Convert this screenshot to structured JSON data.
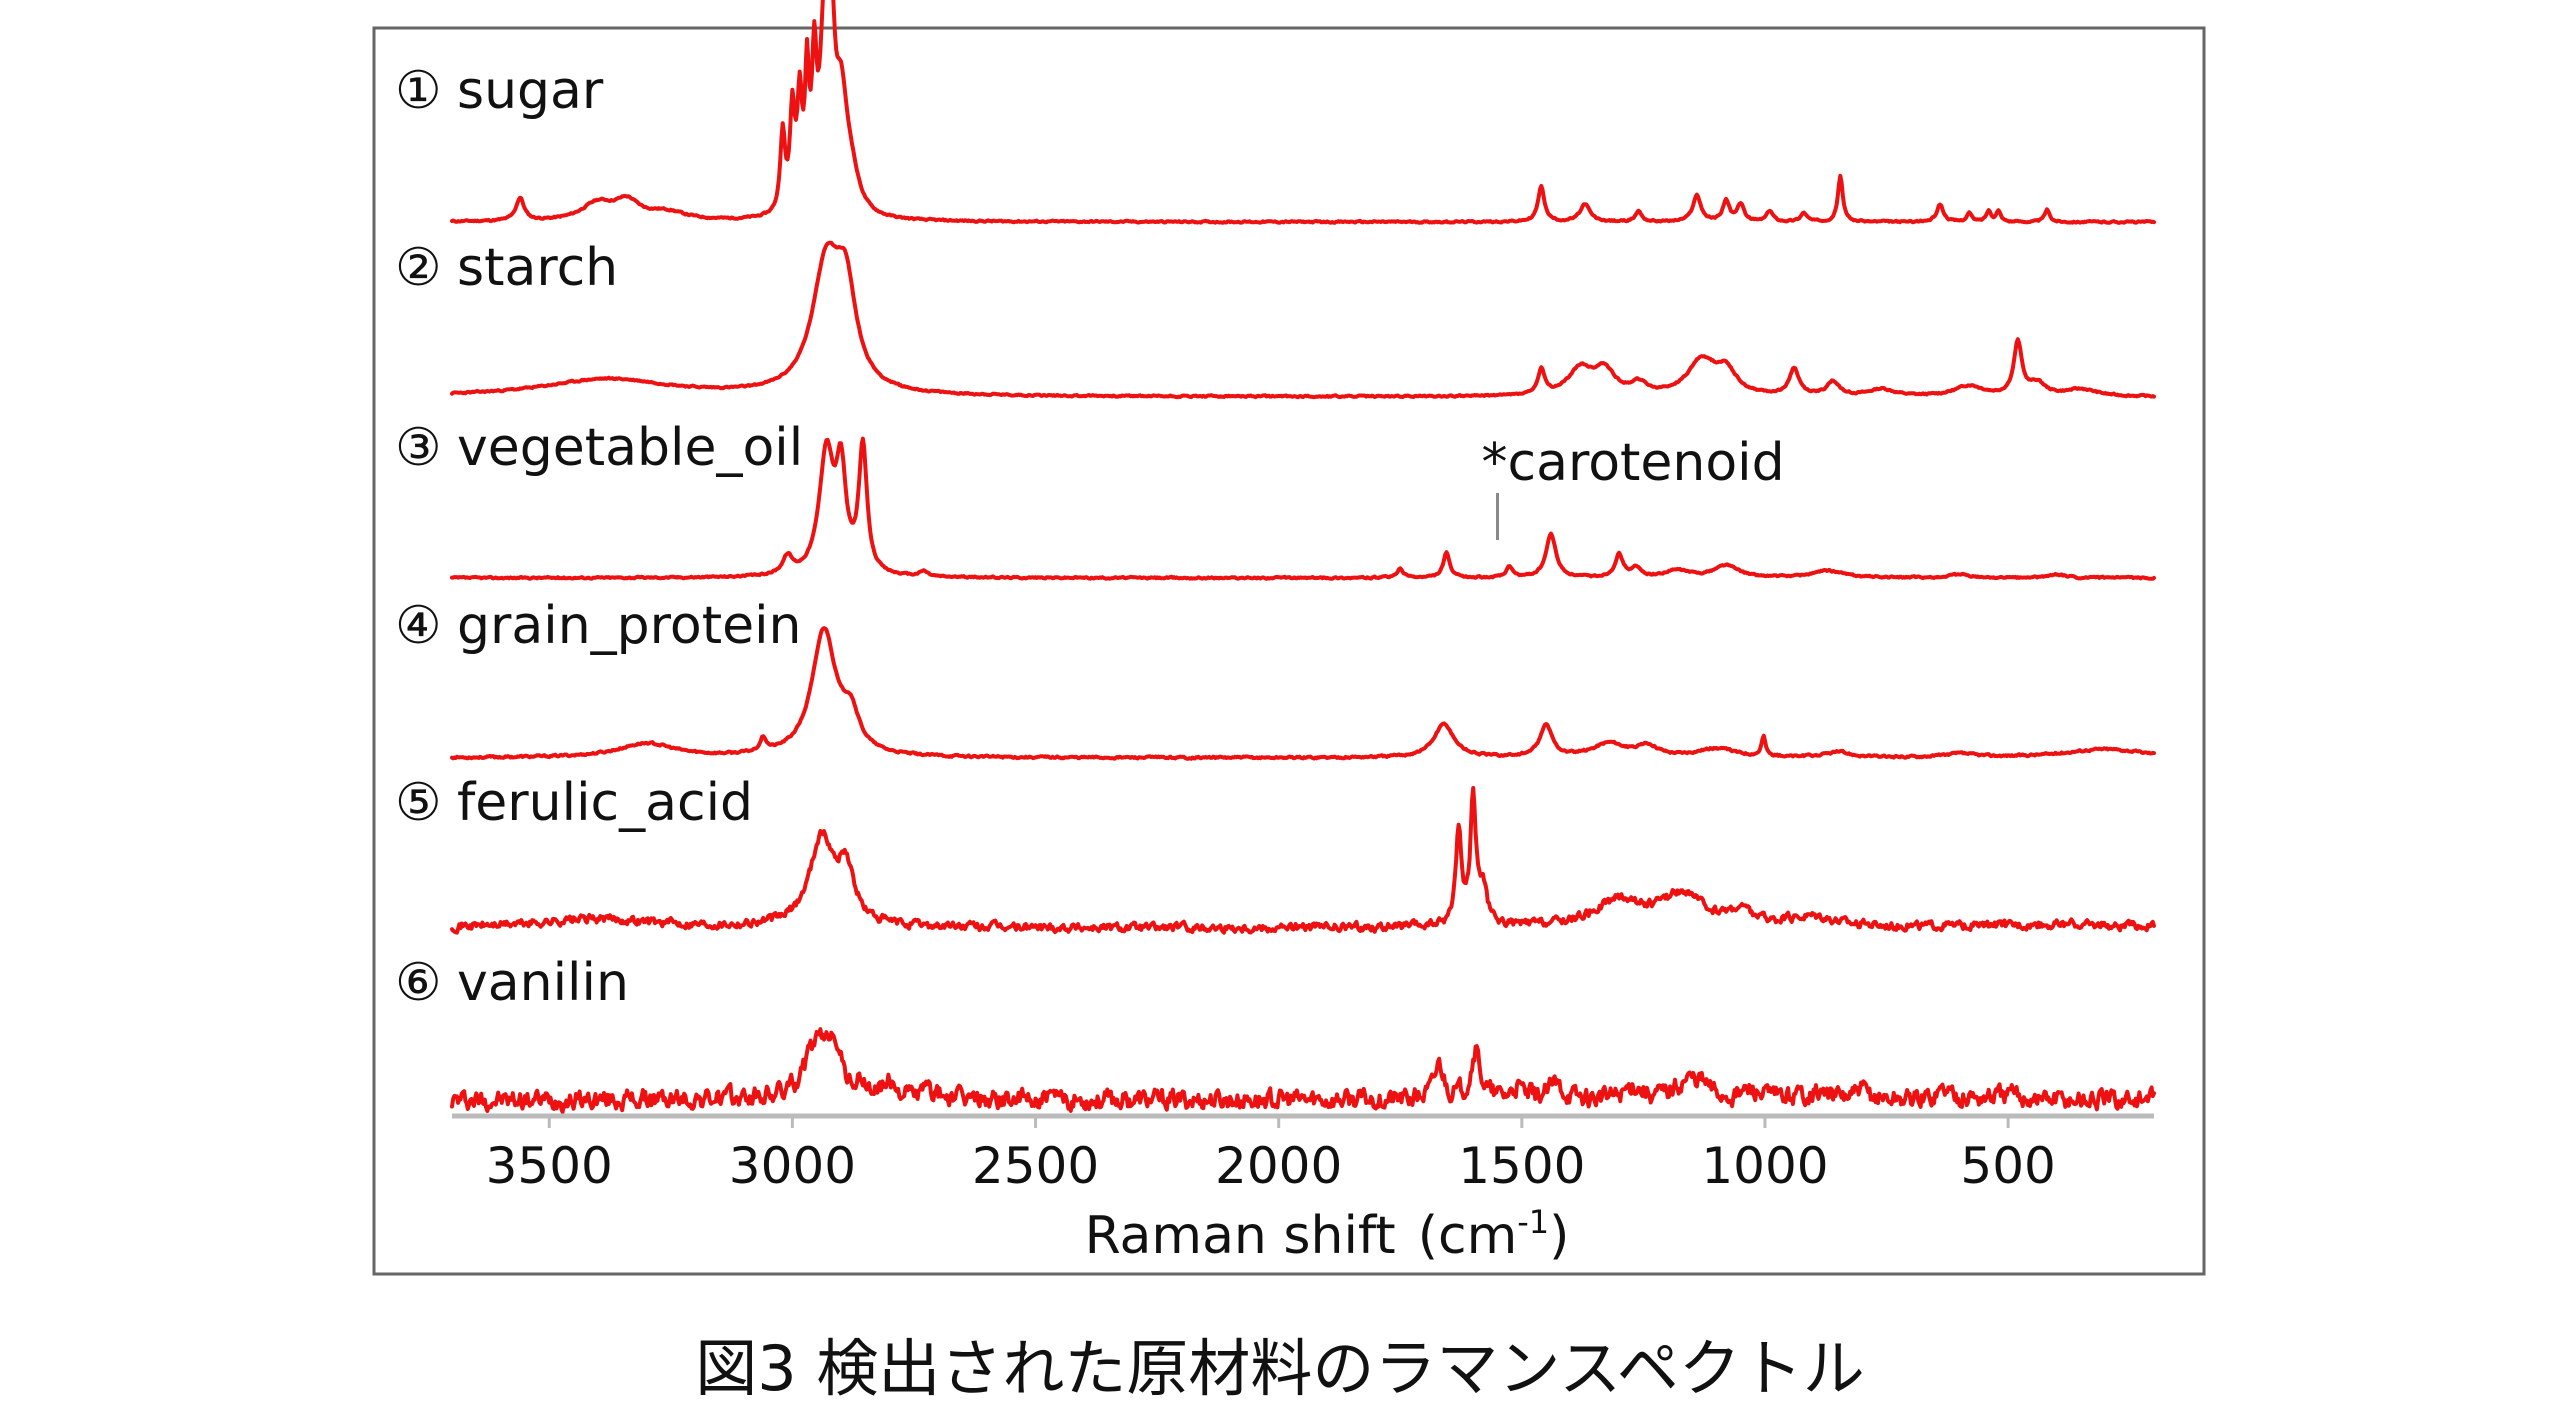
{
  "chart_data": {
    "type": "line",
    "title": "",
    "xlabel": "Raman shift",
    "xlabel_unit": "(cm",
    "xlabel_unit_sup": "-1",
    "xlabel_unit_close": ")",
    "ylabel": "",
    "x_reversed": true,
    "xlim": [
      3700,
      200
    ],
    "xticks": [
      3500,
      3000,
      2500,
      2000,
      1500,
      1000,
      500
    ],
    "tick_labels": [
      "3500",
      "3000",
      "2500",
      "2000",
      "1500",
      "1000",
      "500"
    ],
    "grid": false,
    "line_color": "#ee1111",
    "annotation": {
      "marker": "*",
      "text": "carotenoid",
      "x": 1550
    },
    "series": [
      {
        "index": "①",
        "name": "sugar",
        "seed": 11,
        "noise": 0.004,
        "peaks": [
          [
            3560,
            10,
            0.13
          ],
          [
            3400,
            40,
            0.1
          ],
          [
            3340,
            30,
            0.1
          ],
          [
            3260,
            50,
            0.05
          ],
          [
            3020,
            6,
            0.45
          ],
          [
            3000,
            6,
            0.55
          ],
          [
            2985,
            6,
            0.6
          ],
          [
            2970,
            5,
            0.7
          ],
          [
            2955,
            6,
            0.75
          ],
          [
            2935,
            10,
            0.95
          ],
          [
            2920,
            8,
            0.9
          ],
          [
            2900,
            15,
            0.6
          ],
          [
            2880,
            20,
            0.2
          ],
          [
            1460,
            8,
            0.2
          ],
          [
            1370,
            12,
            0.1
          ],
          [
            1260,
            8,
            0.06
          ],
          [
            1140,
            10,
            0.15
          ],
          [
            1080,
            8,
            0.12
          ],
          [
            1050,
            8,
            0.1
          ],
          [
            990,
            8,
            0.06
          ],
          [
            920,
            8,
            0.05
          ],
          [
            845,
            6,
            0.26
          ],
          [
            640,
            8,
            0.1
          ],
          [
            580,
            6,
            0.05
          ],
          [
            540,
            6,
            0.06
          ],
          [
            520,
            6,
            0.06
          ],
          [
            420,
            6,
            0.07
          ]
        ]
      },
      {
        "index": "②",
        "name": "starch",
        "seed": 23,
        "noise": 0.004,
        "peaks": [
          [
            3380,
            160,
            0.1
          ],
          [
            2930,
            35,
            0.72
          ],
          [
            2890,
            25,
            0.5
          ],
          [
            1460,
            8,
            0.14
          ],
          [
            1380,
            30,
            0.15
          ],
          [
            1330,
            25,
            0.14
          ],
          [
            1260,
            20,
            0.06
          ],
          [
            1130,
            35,
            0.2
          ],
          [
            1080,
            25,
            0.13
          ],
          [
            940,
            12,
            0.15
          ],
          [
            860,
            15,
            0.08
          ],
          [
            760,
            30,
            0.04
          ],
          [
            580,
            35,
            0.06
          ],
          [
            480,
            10,
            0.3
          ],
          [
            440,
            20,
            0.07
          ],
          [
            350,
            40,
            0.04
          ]
        ]
      },
      {
        "index": "③",
        "name": "vegetable_oil",
        "seed": 37,
        "noise": 0.004,
        "peaks": [
          [
            3010,
            12,
            0.1
          ],
          [
            2930,
            18,
            0.7
          ],
          [
            2900,
            12,
            0.55
          ],
          [
            2855,
            10,
            0.72
          ],
          [
            2730,
            10,
            0.03
          ],
          [
            1750,
            8,
            0.05
          ],
          [
            1655,
            8,
            0.14
          ],
          [
            1525,
            8,
            0.06
          ],
          [
            1440,
            12,
            0.25
          ],
          [
            1300,
            10,
            0.13
          ],
          [
            1265,
            12,
            0.05
          ],
          [
            1180,
            30,
            0.04
          ],
          [
            1080,
            30,
            0.07
          ],
          [
            870,
            40,
            0.04
          ],
          [
            600,
            20,
            0.02
          ],
          [
            400,
            20,
            0.02
          ]
        ]
      },
      {
        "index": "④",
        "name": "grain_protein",
        "seed": 53,
        "noise": 0.005,
        "peaks": [
          [
            3300,
            70,
            0.08
          ],
          [
            3060,
            8,
            0.08
          ],
          [
            2935,
            30,
            0.72
          ],
          [
            2880,
            20,
            0.2
          ],
          [
            1660,
            25,
            0.19
          ],
          [
            1450,
            15,
            0.18
          ],
          [
            1320,
            40,
            0.08
          ],
          [
            1240,
            25,
            0.06
          ],
          [
            1100,
            50,
            0.05
          ],
          [
            1003,
            5,
            0.11
          ],
          [
            850,
            30,
            0.03
          ],
          [
            600,
            40,
            0.02
          ],
          [
            300,
            100,
            0.05
          ]
        ]
      },
      {
        "index": "⑤",
        "name": "ferulic_acid",
        "seed": 71,
        "noise": 0.02,
        "peaks": [
          [
            3400,
            150,
            0.05
          ],
          [
            2940,
            30,
            0.5
          ],
          [
            2890,
            20,
            0.3
          ],
          [
            1630,
            7,
            0.55
          ],
          [
            1600,
            7,
            0.72
          ],
          [
            1580,
            10,
            0.2
          ],
          [
            1300,
            60,
            0.15
          ],
          [
            1170,
            50,
            0.18
          ],
          [
            1050,
            30,
            0.08
          ],
          [
            900,
            60,
            0.06
          ],
          [
            400,
            150,
            0.02
          ]
        ]
      },
      {
        "index": "⑥",
        "name": "vanilin",
        "seed": 97,
        "noise": 0.045,
        "peaks": [
          [
            2950,
            30,
            0.3
          ],
          [
            2915,
            15,
            0.28
          ],
          [
            2860,
            15,
            0.05
          ],
          [
            2800,
            20,
            0.08
          ],
          [
            2720,
            20,
            0.05
          ],
          [
            1670,
            12,
            0.2
          ],
          [
            1595,
            12,
            0.28
          ],
          [
            1510,
            15,
            0.06
          ],
          [
            1430,
            20,
            0.08
          ],
          [
            1270,
            20,
            0.08
          ],
          [
            1160,
            30,
            0.1
          ],
          [
            1130,
            20,
            0.06
          ],
          [
            1030,
            20,
            0.05
          ],
          [
            900,
            40,
            0.04
          ],
          [
            800,
            20,
            0.04
          ],
          [
            630,
            20,
            0.06
          ],
          [
            500,
            40,
            0.03
          ]
        ]
      }
    ]
  },
  "caption": "図3 検出された原材料のラマンスペクトル"
}
